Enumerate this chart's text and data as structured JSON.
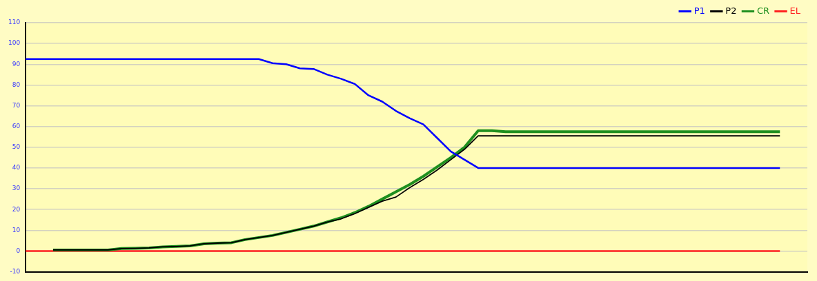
{
  "chart_data": {
    "type": "line",
    "categories": [
      null,
      null,
      null,
      null,
      null,
      null,
      null,
      null,
      null,
      null,
      null,
      null,
      null,
      null,
      null,
      null,
      null,
      null,
      null,
      null,
      null,
      null,
      null,
      null,
      null,
      null,
      null,
      null,
      null,
      null,
      null,
      null,
      null,
      null,
      null,
      null,
      null,
      null,
      null,
      null,
      null,
      null,
      null,
      null,
      null,
      null,
      null,
      null,
      null,
      null,
      null,
      null,
      null,
      null,
      null,
      null,
      null,
      null
    ],
    "series": [
      {
        "name": "P1",
        "color": "#0000ff",
        "values": [
          92.5,
          92.5,
          92.5,
          92.5,
          92.5,
          92.5,
          92.5,
          92.5,
          92.5,
          92.5,
          92.5,
          92.5,
          92.5,
          92.5,
          92.5,
          92.5,
          92.5,
          92.5,
          90.5,
          90,
          88,
          87.7,
          85,
          83,
          80.5,
          75,
          72,
          67.5,
          64,
          61,
          54.5,
          48,
          44,
          40,
          40,
          40,
          40,
          40,
          40,
          40,
          40,
          40,
          40,
          40,
          40,
          40,
          40,
          40,
          40,
          40,
          40,
          40,
          40,
          40,
          40,
          40,
          null,
          null
        ]
      },
      {
        "name": "P2",
        "color": "#000000",
        "values": [
          null,
          null,
          0.5,
          0.5,
          0.5,
          0.5,
          0.5,
          1.2,
          1.3,
          1.5,
          2,
          2.2,
          2.5,
          3.5,
          3.8,
          4,
          5.5,
          6.5,
          7.5,
          9,
          10.5,
          12,
          14,
          15.5,
          18,
          21,
          24,
          26,
          30.5,
          34.5,
          39,
          44,
          49,
          55.5,
          55.5,
          55.5,
          55.5,
          55.5,
          55.5,
          55.5,
          55.5,
          55.5,
          55.5,
          55.5,
          55.5,
          55.5,
          55.5,
          55.5,
          55.5,
          55.5,
          55.5,
          55.5,
          55.5,
          55.5,
          55.5,
          55.5,
          null,
          null
        ]
      },
      {
        "name": "CR",
        "color": "#1f8f1f",
        "values": [
          null,
          null,
          0.5,
          0.5,
          0.5,
          0.5,
          0.5,
          1.2,
          1.3,
          1.5,
          2,
          2.2,
          2.5,
          3.5,
          3.8,
          4,
          5.5,
          6.5,
          7.5,
          9,
          10.5,
          12,
          14,
          16,
          18.5,
          21.5,
          25,
          28.5,
          32,
          36,
          40.5,
          45,
          50,
          58,
          58,
          57.5,
          57.5,
          57.5,
          57.5,
          57.5,
          57.5,
          57.5,
          57.5,
          57.5,
          57.5,
          57.5,
          57.5,
          57.5,
          57.5,
          57.5,
          57.5,
          57.5,
          57.5,
          57.5,
          57.5,
          57.5,
          null,
          null
        ]
      },
      {
        "name": "EL",
        "color": "#ff2020",
        "values": [
          0,
          0,
          0,
          0,
          0,
          0,
          0,
          0,
          0,
          0,
          0,
          0,
          0,
          0,
          0,
          0,
          0,
          0,
          0,
          0,
          0,
          0,
          0,
          0,
          0,
          0,
          0,
          0,
          0,
          0,
          0,
          0,
          0,
          0,
          0,
          0,
          0,
          0,
          0,
          0,
          0,
          0,
          0,
          0,
          0,
          0,
          0,
          0,
          0,
          0,
          0,
          0,
          0,
          0,
          0,
          0,
          null,
          null
        ]
      }
    ],
    "ylim": [
      -10,
      110
    ],
    "yticks": [
      -10,
      0,
      10,
      20,
      30,
      40,
      50,
      60,
      70,
      80,
      90,
      100,
      110
    ],
    "grid": "y",
    "legend": "top right",
    "tick_labels": "y",
    "marker": "none",
    "line_style": "solid"
  }
}
